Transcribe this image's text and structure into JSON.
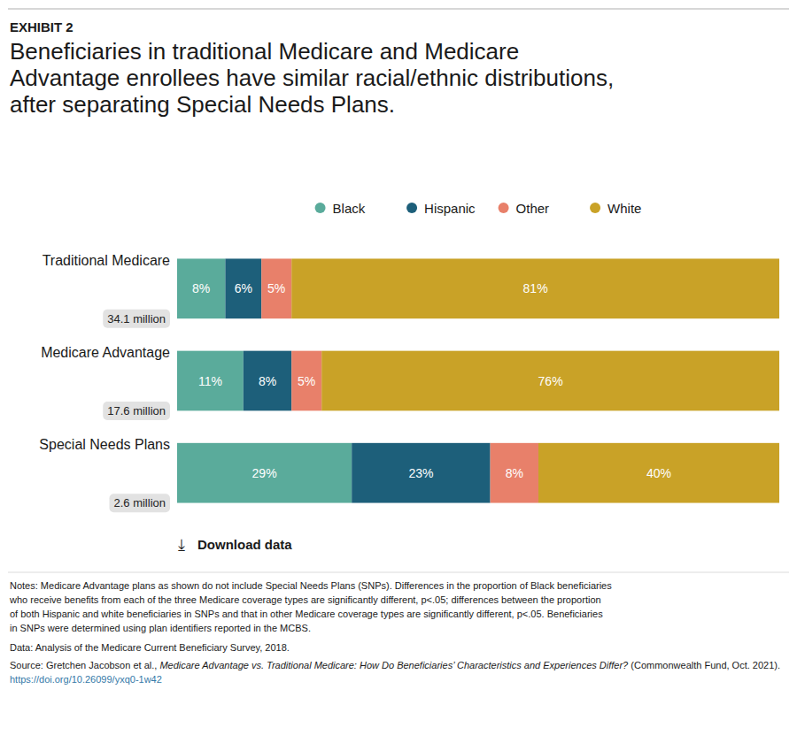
{
  "chart_data": {
    "type": "bar",
    "orientation": "horizontal",
    "stacked": true,
    "data_labels": true,
    "tick_labels": false,
    "legend": "top",
    "exhibit_label": "EXHIBIT 2",
    "title": "Beneficiaries in traditional Medicare and Medicare\nAdvantage enrollees have similar racial/ethnic distributions,\nafter separating Special Needs Plans.",
    "categories": [
      "Traditional Medicare",
      "Medicare Advantage",
      "Special Needs Plans"
    ],
    "category_subtitles": [
      "34.1 million",
      "17.6 million",
      "2.6 million"
    ],
    "xlim": [
      0,
      100
    ],
    "series": [
      {
        "name": "Black",
        "color": "#5aab9b",
        "values": [
          8,
          11,
          29
        ],
        "value_labels": [
          "8%",
          "11%",
          "29%"
        ]
      },
      {
        "name": "Hispanic",
        "color": "#1d5f7a",
        "values": [
          6,
          8,
          23
        ],
        "value_labels": [
          "6%",
          "8%",
          "23%"
        ]
      },
      {
        "name": "Other",
        "color": "#e8806a",
        "values": [
          5,
          5,
          8
        ],
        "value_labels": [
          "5%",
          "5%",
          "8%"
        ]
      },
      {
        "name": "White",
        "color": "#c9a227",
        "values": [
          81,
          76,
          40
        ],
        "value_labels": [
          "81%",
          "76%",
          "40%"
        ]
      }
    ],
    "download_icon": "⤓",
    "download_text": "Download data",
    "notes": "Notes: Medicare Advantage plans as shown do not include Special Needs Plans (SNPs). Differences in the proportion of Black beneficiaries\nwho receive benefits from each of the three Medicare coverage types are significantly different, p<.05; differences between the proportion\nof both Hispanic and white beneficiaries in SNPs and that in other Medicare coverage types are significantly different, p<.05. Beneficiaries\nin SNPs were determined using plan identifiers reported in the MCBS.",
    "data_note": "Data: Analysis of the Medicare Current Beneficiary Survey, 2018.",
    "source": {
      "prefix": "Source: Gretchen Jacobson et al., ",
      "title": "Medicare Advantage vs. Traditional Medicare: How Do Beneficiaries’ Characteristics and Experiences Differ?",
      "suffix": " (Commonwealth Fund, Oct. 2021). ",
      "url": "https://doi.org/10.26099/yxq0-1w42"
    }
  }
}
